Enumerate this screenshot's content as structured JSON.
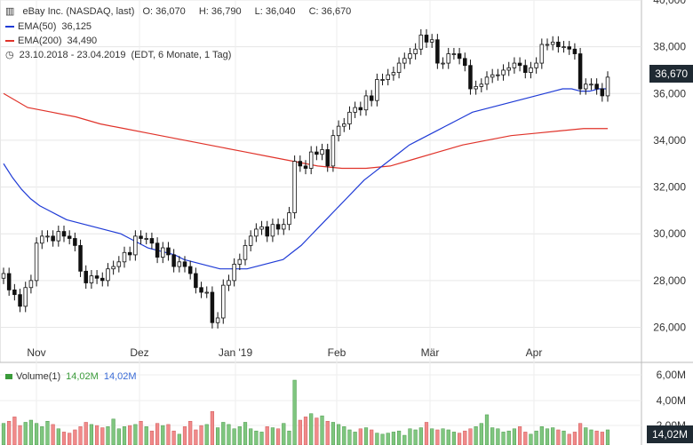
{
  "header": {
    "title_line": "eBay Inc. (NASDAQ, last)",
    "ohlc": {
      "O": "36,070",
      "H": "36,790",
      "L": "36,040",
      "C": "36,670"
    },
    "ema50": {
      "label": "EMA(50)",
      "value": "36,125",
      "color": "#1f3bd6"
    },
    "ema200": {
      "label": "EMA(200)",
      "value": "34,490",
      "color": "#e0332a"
    },
    "range": "23.10.2018 - 23.04.2019",
    "meta": "(EDT, 6 Monate, 1 Tag)"
  },
  "volume_header": {
    "label": "Volume(1)",
    "v1": "14,02M",
    "v2": "14,02M"
  },
  "last_price_badge": "36,670",
  "volume_badge": "14,02M",
  "chart_data": [
    {
      "type": "candlestick",
      "title": "eBay Inc. (NASDAQ, last)",
      "x_labels": [
        "Nov",
        "Dez",
        "Jan '19",
        "Feb",
        "Mär",
        "Apr"
      ],
      "y_ticks": [
        "40,000",
        "38,000",
        "36,000",
        "34,000",
        "32,000",
        "30,000",
        "28,000",
        "26,000"
      ],
      "ylim": [
        24.5,
        40
      ],
      "grid": true,
      "up_color": "#ffffff",
      "down_color": "#111111",
      "closes": [
        28.3,
        27.6,
        27.4,
        26.9,
        27.7,
        28.0,
        29.6,
        29.9,
        29.9,
        29.7,
        30.1,
        29.9,
        29.8,
        29.5,
        28.4,
        27.9,
        28.2,
        28.1,
        28.0,
        28.5,
        28.6,
        28.8,
        29.2,
        29.1,
        29.9,
        29.8,
        29.8,
        29.6,
        29.0,
        29.4,
        29.1,
        28.6,
        28.8,
        28.6,
        28.3,
        27.7,
        27.5,
        27.5,
        26.2,
        26.4,
        27.8,
        28.0,
        28.7,
        28.9,
        29.5,
        29.9,
        30.2,
        30.3,
        29.9,
        30.4,
        30.2,
        30.4,
        30.9,
        33.1,
        32.9,
        32.8,
        33.5,
        33.4,
        33.6,
        32.9,
        34.2,
        34.6,
        34.7,
        35.2,
        35.4,
        35.3,
        35.9,
        35.7,
        36.6,
        36.6,
        36.8,
        36.9,
        37.3,
        37.5,
        37.7,
        37.9,
        38.5,
        38.2,
        38.3,
        37.3,
        37.3,
        37.7,
        37.7,
        37.5,
        37.2,
        36.2,
        36.3,
        36.4,
        36.7,
        36.8,
        36.8,
        37.0,
        37.1,
        37.3,
        37.2,
        36.9,
        37.1,
        37.3,
        38.1,
        38.1,
        38.2,
        38.0,
        38.0,
        37.9,
        37.7,
        36.2,
        36.4,
        36.4,
        36.2,
        35.9,
        36.7
      ],
      "volumes_m": [
        20,
        22,
        26,
        18,
        21,
        23,
        20,
        17,
        22,
        19,
        15,
        12,
        11,
        14,
        17,
        21,
        19,
        18,
        16,
        17,
        24,
        15,
        17,
        18,
        19,
        22,
        17,
        13,
        20,
        18,
        19,
        13,
        10,
        17,
        22,
        14,
        18,
        19,
        31,
        16,
        21,
        19,
        15,
        17,
        21,
        15,
        13,
        12,
        17,
        16,
        15,
        20,
        13,
        60,
        23,
        26,
        29,
        25,
        27,
        22,
        21,
        19,
        17,
        14,
        12,
        15,
        16,
        14,
        11,
        10,
        11,
        12,
        13,
        9,
        15,
        14,
        16,
        21,
        15,
        14,
        15,
        14,
        12,
        11,
        13,
        15,
        17,
        20,
        28,
        16,
        15,
        12,
        13,
        15,
        17,
        12,
        10,
        13,
        17,
        15,
        16,
        14,
        13,
        10,
        12,
        20,
        16,
        14,
        13,
        12,
        14
      ],
      "ema50": [
        33.0,
        32.4,
        31.9,
        31.5,
        31.2,
        31.0,
        30.8,
        30.6,
        30.5,
        30.4,
        30.3,
        30.2,
        30.1,
        30.0,
        29.8,
        29.6,
        29.4,
        29.3,
        29.2,
        29.1,
        28.9,
        28.8,
        28.7,
        28.6,
        28.5,
        28.5,
        28.5,
        28.5,
        28.6,
        28.7,
        28.8,
        28.9,
        29.2,
        29.5,
        29.9,
        30.3,
        30.7,
        31.1,
        31.5,
        31.9,
        32.3,
        32.6,
        32.9,
        33.2,
        33.5,
        33.8,
        34.0,
        34.2,
        34.4,
        34.6,
        34.8,
        35.0,
        35.2,
        35.3,
        35.4,
        35.5,
        35.6,
        35.7,
        35.8,
        35.9,
        36.0,
        36.1,
        36.2,
        36.2,
        36.1,
        36.1,
        36.2,
        36.2
      ],
      "ema200": [
        36.0,
        35.4,
        35.2,
        35.0,
        34.7,
        34.5,
        34.3,
        34.1,
        33.9,
        33.7,
        33.5,
        33.3,
        33.1,
        32.9,
        32.8,
        32.8,
        32.9,
        33.2,
        33.5,
        33.8,
        34.0,
        34.2,
        34.3,
        34.4,
        34.5,
        34.5
      ],
      "series": [
        {
          "name": "EMA(50)",
          "last": 36.125
        },
        {
          "name": "EMA(200)",
          "last": 34.49
        }
      ]
    }
  ]
}
